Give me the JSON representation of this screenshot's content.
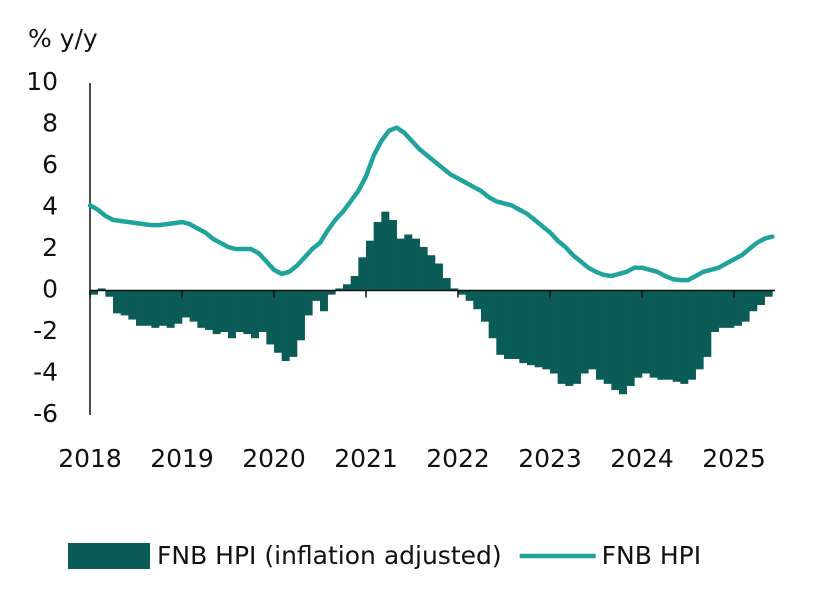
{
  "chart_data": {
    "type": "bar",
    "y_label": "% y/y",
    "categories": [
      "2018",
      null,
      null,
      null,
      null,
      null,
      null,
      null,
      null,
      null,
      null,
      null,
      "2019",
      null,
      null,
      null,
      null,
      null,
      null,
      null,
      null,
      null,
      null,
      null,
      "2020",
      null,
      null,
      null,
      null,
      null,
      null,
      null,
      null,
      null,
      null,
      null,
      "2021",
      null,
      null,
      null,
      null,
      null,
      null,
      null,
      null,
      null,
      null,
      null,
      "2022",
      null,
      null,
      null,
      null,
      null,
      null,
      null,
      null,
      null,
      null,
      null,
      "2023",
      null,
      null,
      null,
      null,
      null,
      null,
      null,
      null,
      null,
      null,
      null,
      "2024",
      null,
      null,
      null,
      null,
      null,
      null,
      null,
      null,
      null,
      null,
      null,
      "2025",
      null,
      null,
      null,
      null,
      null
    ],
    "series": [
      {
        "name": "FNB HPI (inflation adjusted)",
        "type": "bar",
        "color": "#0b5c57",
        "values": [
          -0.2,
          0.1,
          -0.3,
          -1.1,
          -1.2,
          -1.4,
          -1.7,
          -1.7,
          -1.8,
          -1.7,
          -1.8,
          -1.6,
          -1.3,
          -1.5,
          -1.8,
          -1.9,
          -2.1,
          -2.0,
          -2.3,
          -2.0,
          -2.1,
          -2.3,
          -2.0,
          -2.6,
          -3.0,
          -3.4,
          -3.2,
          -2.4,
          -1.2,
          -0.5,
          -1.0,
          -0.2,
          0.1,
          0.3,
          0.7,
          1.6,
          2.4,
          3.3,
          3.8,
          3.4,
          2.5,
          2.7,
          2.5,
          2.1,
          1.7,
          1.3,
          0.6,
          0.1,
          -0.2,
          -0.5,
          -0.9,
          -1.5,
          -2.3,
          -3.1,
          -3.3,
          -3.3,
          -3.5,
          -3.6,
          -3.7,
          -3.8,
          -4.0,
          -4.5,
          -4.6,
          -4.5,
          -4.0,
          -3.8,
          -4.3,
          -4.5,
          -4.8,
          -5.0,
          -4.6,
          -4.2,
          -4.0,
          -4.2,
          -4.3,
          -4.3,
          -4.4,
          -4.5,
          -4.3,
          -3.8,
          -3.2,
          -2.0,
          -1.8,
          -1.8,
          -1.7,
          -1.5,
          -1.0,
          -0.7,
          -0.3,
          null
        ]
      },
      {
        "name": "FNB HPI",
        "type": "line",
        "color": "#1fa39c",
        "values": [
          4.1,
          3.9,
          3.6,
          3.4,
          3.35,
          3.3,
          3.25,
          3.2,
          3.15,
          3.15,
          3.2,
          3.25,
          3.3,
          3.2,
          3.0,
          2.8,
          2.5,
          2.3,
          2.1,
          2.0,
          2.0,
          2.0,
          1.8,
          1.4,
          1.0,
          0.8,
          0.9,
          1.2,
          1.6,
          2.0,
          2.3,
          2.9,
          3.4,
          3.8,
          4.3,
          4.8,
          5.5,
          6.5,
          7.2,
          7.7,
          7.85,
          7.6,
          7.2,
          6.8,
          6.5,
          6.2,
          5.9,
          5.6,
          5.4,
          5.2,
          5.0,
          4.8,
          4.5,
          4.3,
          4.2,
          4.1,
          3.9,
          3.7,
          3.4,
          3.1,
          2.8,
          2.4,
          2.1,
          1.7,
          1.4,
          1.1,
          0.9,
          0.75,
          0.7,
          0.8,
          0.9,
          1.1,
          1.1,
          1.0,
          0.9,
          0.7,
          0.55,
          0.5,
          0.5,
          0.7,
          0.9,
          1.0,
          1.1,
          1.3,
          1.5,
          1.7,
          2.0,
          2.3,
          2.5,
          2.6
        ]
      }
    ],
    "ylim": [
      -6,
      10
    ],
    "yticks": [
      -6,
      -4,
      -2,
      0,
      2,
      4,
      6,
      8,
      10
    ],
    "grid": false,
    "legend": "bottom"
  }
}
